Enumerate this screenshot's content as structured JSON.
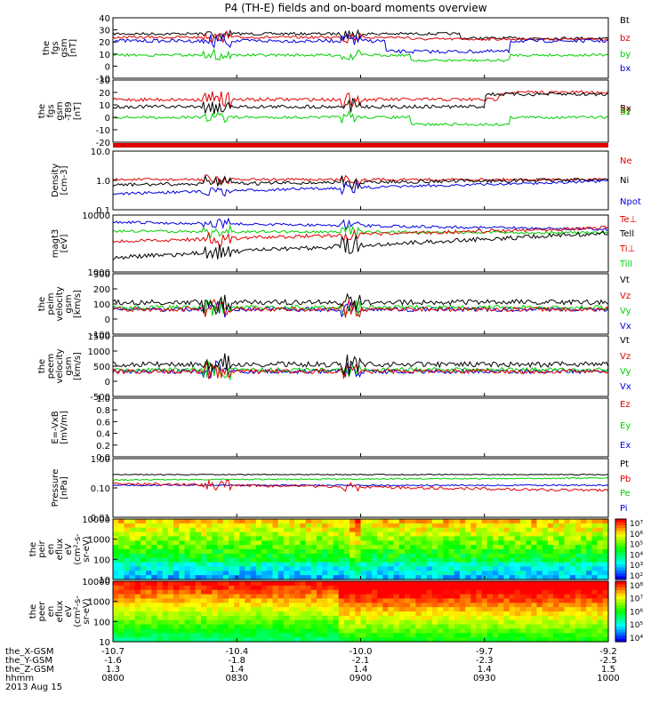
{
  "title": "P4 (TH-E) fields and on-board moments overview",
  "date": "2013 Aug 15",
  "colors": {
    "black": "#000000",
    "red": "#e00000",
    "green": "#00d000",
    "blue": "#0000e0"
  },
  "xaxis": {
    "row_labels": [
      "the_X-GSM",
      "the_Y-GSM",
      "the_Z-GSM",
      "hhmm"
    ],
    "ticks": [
      {
        "vals": [
          "-10.7",
          "-1.6",
          "1.3",
          "0800"
        ]
      },
      {
        "vals": [
          "-10.4",
          "-1.8",
          "1.4",
          "0830"
        ]
      },
      {
        "vals": [
          "-10.0",
          "-2.1",
          "1.4",
          "0900"
        ]
      },
      {
        "vals": [
          "-9.7",
          "-2.3",
          "1.4",
          "0930"
        ]
      },
      {
        "vals": [
          "-9.2",
          "-2.5",
          "1.5",
          "1000"
        ]
      }
    ]
  },
  "chart_data": [
    {
      "type": "line",
      "ylabel": [
        "the",
        "fgs",
        "gsm",
        "[nT]"
      ],
      "ylim": [
        -10,
        40
      ],
      "ticks": [
        "40",
        "30",
        "20",
        "10",
        "0",
        "-10"
      ],
      "legend": [
        "Bt",
        "bz",
        "by",
        "bx"
      ]
    },
    {
      "type": "line",
      "ylabel": [
        "the",
        "fgs",
        "gsm",
        "-T89",
        "[nT]"
      ],
      "ylim": [
        -25,
        30
      ],
      "ticks": [
        "30",
        "20",
        "10",
        "0",
        "-10",
        "-20"
      ],
      "legend": [
        "Bx",
        "By",
        "Bz"
      ]
    },
    {
      "type": "line",
      "ylabel": [
        "Density",
        "[cm-3]"
      ],
      "scale": "log",
      "ticks": [
        "10.0",
        "1.0",
        "0.1"
      ],
      "legend": [
        "Ne",
        "Ni",
        "Npot"
      ]
    },
    {
      "type": "line",
      "ylabel": [
        "magt3",
        "[eV]"
      ],
      "scale": "log",
      "ticks": [
        "10000",
        "1000"
      ],
      "legend": [
        "Te⊥",
        "Tell",
        "Ti⊥",
        "Till"
      ]
    },
    {
      "type": "line",
      "ylabel": [
        "the",
        "peim",
        "velocity",
        "gsm",
        "[km/s]"
      ],
      "ylim": [
        -100,
        300
      ],
      "ticks": [
        "300",
        "200",
        "100",
        "0",
        "-100"
      ],
      "legend": [
        "Vt",
        "Vz",
        "Vy",
        "Vx"
      ]
    },
    {
      "type": "line",
      "ylabel": [
        "the",
        "peem",
        "velocity",
        "gsm",
        "[km/s]"
      ],
      "ylim": [
        -500,
        1500
      ],
      "ticks": [
        "1500",
        "1000",
        "500",
        "0",
        "-500"
      ],
      "legend": [
        "Vt",
        "Vz",
        "Vy",
        "Vx"
      ]
    },
    {
      "type": "line",
      "ylabel": [
        "E=-VxB",
        "[mV/m]"
      ],
      "ylim": [
        0,
        1
      ],
      "ticks": [
        "1.0",
        "0.8",
        "0.6",
        "0.4",
        "0.2",
        "0.0"
      ],
      "legend": [
        "Ez",
        "Ey",
        "Ex"
      ]
    },
    {
      "type": "line",
      "ylabel": [
        "Pressure",
        "[nPa]"
      ],
      "scale": "log",
      "ticks": [
        "1.00",
        "0.10",
        "0.01"
      ],
      "legend": [
        "Pt",
        "Pb",
        "Pe",
        "Pi"
      ]
    },
    {
      "type": "heatmap",
      "ylabel": [
        "the",
        "peir",
        "en",
        "eflux",
        "eV",
        "(cm²-s-",
        "sr-eV)"
      ],
      "scale": "log",
      "ticks": [
        "10000",
        "1000",
        "100",
        "10"
      ],
      "colorbar": [
        "10⁷",
        "10⁶",
        "10⁵",
        "10⁴",
        "10³",
        "10²"
      ]
    },
    {
      "type": "heatmap",
      "ylabel": [
        "the",
        "peer",
        "en",
        "eflux",
        "eV",
        "(cm²-s-",
        "sr-eV)"
      ],
      "scale": "log",
      "ticks": [
        "10000",
        "1000",
        "100",
        "10"
      ],
      "colorbar": [
        "10⁸",
        "10⁷",
        "10⁶",
        "10⁵",
        "10⁴"
      ]
    }
  ]
}
